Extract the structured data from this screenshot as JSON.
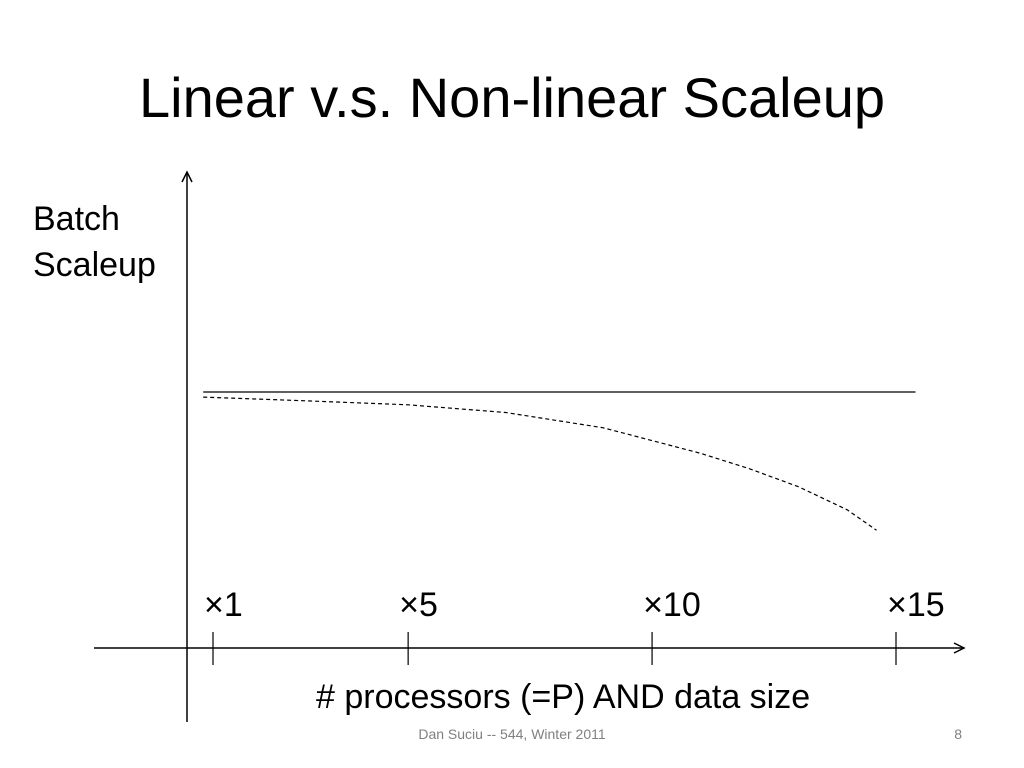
{
  "slide": {
    "title": "Linear v.s. Non-linear Scaleup",
    "footer": "Dan Suciu -- 544, Winter 2011",
    "page_number": "8"
  },
  "chart_data": {
    "type": "line",
    "title": "Linear v.s. Non-linear Scaleup",
    "ylabel_lines": [
      "Batch",
      "Scaleup"
    ],
    "xlabel": "# processors (=P) AND data size",
    "x_ticks": [
      {
        "value": 1,
        "label": "×1"
      },
      {
        "value": 5,
        "label": "×5"
      },
      {
        "value": 10,
        "label": "×10"
      },
      {
        "value": 15,
        "label": "×15"
      }
    ],
    "xlim": [
      1,
      15
    ],
    "ylim": [
      0,
      1
    ],
    "grid": false,
    "series": [
      {
        "style": "solid",
        "x": [
          0.8,
          15.4
        ],
        "y": [
          1.0,
          1.0
        ]
      },
      {
        "style": "dashed",
        "x": [
          0.8,
          3,
          5,
          7,
          9,
          10,
          11,
          12,
          13,
          14,
          14.6
        ],
        "y": [
          0.98,
          0.965,
          0.95,
          0.92,
          0.86,
          0.81,
          0.76,
          0.7,
          0.63,
          0.54,
          0.46
        ]
      }
    ]
  }
}
